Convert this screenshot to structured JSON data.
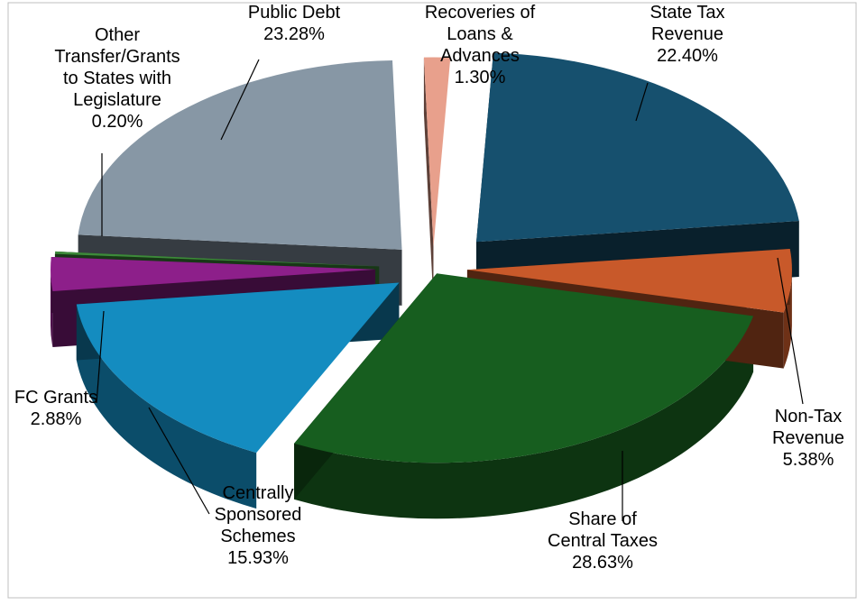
{
  "chart_data": {
    "type": "pie",
    "title": "",
    "legend": "none",
    "categories": [
      "State Tax Revenue",
      "Non-Tax Revenue",
      "Share of Central Taxes",
      "Centrally Sponsored Schemes",
      "FC Grants",
      "Other Transfer/Grants to States with Legislature",
      "Public Debt",
      "Recoveries of Loans & Advances"
    ],
    "values": [
      22.4,
      5.38,
      28.63,
      15.93,
      2.88,
      0.2,
      23.28,
      1.3
    ],
    "slices": [
      {
        "label_lines": [
          "State Tax",
          "Revenue"
        ],
        "value_text": "22.40%",
        "color": "#16506e"
      },
      {
        "label_lines": [
          "Non-Tax",
          "Revenue"
        ],
        "value_text": "5.38%",
        "color": "#c8592a"
      },
      {
        "label_lines": [
          "Share of",
          "Central Taxes"
        ],
        "value_text": "28.63%",
        "color": "#175e1f"
      },
      {
        "label_lines": [
          "Centrally",
          "Sponsored",
          "Schemes"
        ],
        "value_text": "15.93%",
        "color": "#148cc0"
      },
      {
        "label_lines": [
          "FC Grants"
        ],
        "value_text": "2.88%",
        "color": "#8d1f8a"
      },
      {
        "label_lines": [
          "Other",
          "Transfer/Grants",
          "to States with",
          "Legislature"
        ],
        "value_text": "0.20%",
        "color": "#3d8a3a"
      },
      {
        "label_lines": [
          "Public Debt"
        ],
        "value_text": "23.28%",
        "color": "#8797a5"
      },
      {
        "label_lines": [
          "Recoveries of",
          "Loans &",
          "Advances"
        ],
        "value_text": "1.30%",
        "color": "#e8a08c"
      }
    ]
  }
}
